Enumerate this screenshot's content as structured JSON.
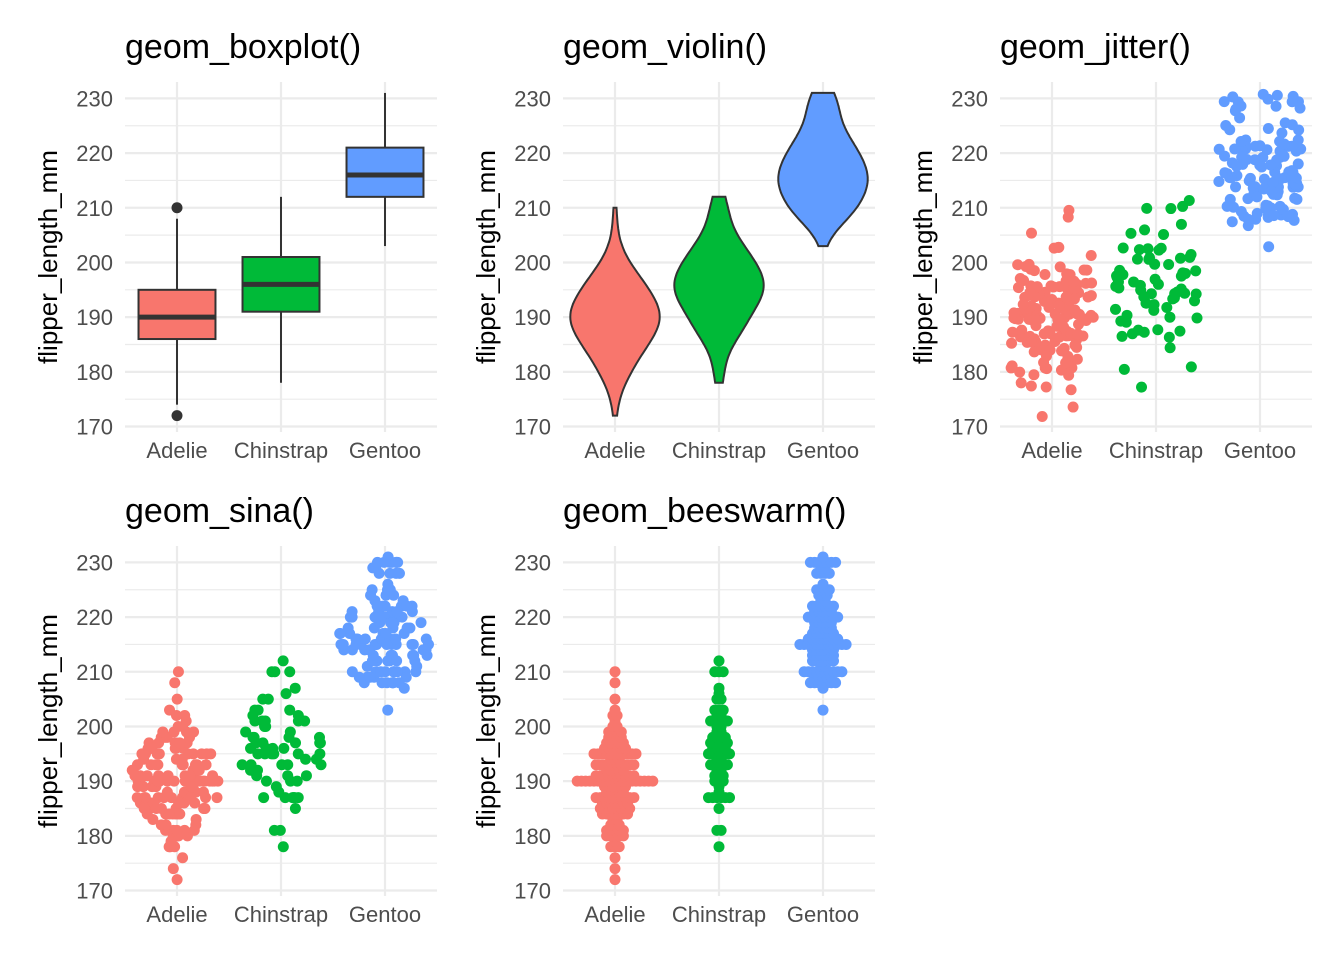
{
  "chart_data": [
    {
      "type": "box",
      "title": "geom_boxplot()",
      "ylabel": "flipper_length_mm",
      "xlabel": "",
      "categories": [
        "Adelie",
        "Chinstrap",
        "Gentoo"
      ],
      "yticks": [
        "170",
        "180",
        "190",
        "200",
        "210",
        "220",
        "230"
      ],
      "ylim": [
        169,
        233
      ],
      "boxes": [
        {
          "category": "Adelie",
          "min": 174,
          "q1": 186,
          "median": 190,
          "q3": 195,
          "max": 208,
          "outliers": [
            172,
            210
          ]
        },
        {
          "category": "Chinstrap",
          "min": 178,
          "q1": 191,
          "median": 196,
          "q3": 201,
          "max": 212,
          "outliers": []
        },
        {
          "category": "Gentoo",
          "min": 203,
          "q1": 212,
          "median": 216,
          "q3": 221,
          "max": 231,
          "outliers": []
        }
      ]
    },
    {
      "type": "violin",
      "title": "geom_violin()",
      "ylabel": "flipper_length_mm",
      "xlabel": "",
      "categories": [
        "Adelie",
        "Chinstrap",
        "Gentoo"
      ],
      "yticks": [
        "170",
        "180",
        "190",
        "200",
        "210",
        "220",
        "230"
      ],
      "ylim": [
        169,
        233
      ],
      "ranges": [
        {
          "category": "Adelie",
          "min": 172,
          "max": 210,
          "mode": 190
        },
        {
          "category": "Chinstrap",
          "min": 178,
          "max": 212,
          "mode": 196
        },
        {
          "category": "Gentoo",
          "min": 203,
          "max": 231,
          "mode": 215
        }
      ]
    },
    {
      "type": "scatter",
      "variant": "jitter",
      "title": "geom_jitter()",
      "ylabel": "flipper_length_mm",
      "xlabel": "",
      "categories": [
        "Adelie",
        "Chinstrap",
        "Gentoo"
      ],
      "yticks": [
        "170",
        "180",
        "190",
        "200",
        "210",
        "220",
        "230"
      ],
      "ylim": [
        169,
        233
      ]
    },
    {
      "type": "scatter",
      "variant": "sina",
      "title": "geom_sina()",
      "ylabel": "flipper_length_mm",
      "xlabel": "",
      "categories": [
        "Adelie",
        "Chinstrap",
        "Gentoo"
      ],
      "yticks": [
        "170",
        "180",
        "190",
        "200",
        "210",
        "220",
        "230"
      ],
      "ylim": [
        169,
        233
      ]
    },
    {
      "type": "scatter",
      "variant": "beeswarm",
      "title": "geom_beeswarm()",
      "ylabel": "flipper_length_mm",
      "xlabel": "",
      "categories": [
        "Adelie",
        "Chinstrap",
        "Gentoo"
      ],
      "yticks": [
        "170",
        "180",
        "190",
        "200",
        "210",
        "220",
        "230"
      ],
      "ylim": [
        169,
        233
      ]
    }
  ],
  "colors": {
    "Adelie": "#F8766D",
    "Chinstrap": "#00BA38",
    "Gentoo": "#619CFF",
    "grid": "#ebebeb",
    "outline": "#333333"
  },
  "samples": {
    "Adelie": [
      181,
      186,
      195,
      193,
      190,
      181,
      195,
      193,
      190,
      186,
      180,
      182,
      191,
      198,
      185,
      195,
      197,
      184,
      194,
      174,
      180,
      189,
      185,
      180,
      187,
      183,
      187,
      172,
      180,
      178,
      178,
      188,
      184,
      195,
      196,
      190,
      180,
      181,
      184,
      182,
      195,
      186,
      196,
      185,
      190,
      182,
      179,
      190,
      191,
      186,
      188,
      190,
      200,
      187,
      191,
      186,
      193,
      181,
      194,
      185,
      195,
      185,
      192,
      184,
      192,
      195,
      188,
      190,
      198,
      190,
      190,
      196,
      197,
      190,
      195,
      191,
      184,
      187,
      195,
      189,
      196,
      187,
      193,
      191,
      194,
      190,
      189,
      189,
      190,
      202,
      205,
      185,
      186,
      187,
      208,
      190,
      196,
      178,
      192,
      192,
      203,
      183,
      190,
      193,
      184,
      199,
      190,
      181,
      197,
      198,
      191,
      193,
      197,
      191,
      196,
      188,
      199,
      189,
      189,
      187,
      198,
      176,
      202,
      186,
      199,
      191,
      195,
      191,
      210,
      190,
      197,
      193,
      199,
      187,
      190,
      191,
      200,
      185,
      193,
      193,
      187,
      188,
      190,
      192,
      185,
      190,
      184,
      195,
      193,
      187,
      201
    ],
    "Chinstrap": [
      192,
      196,
      193,
      188,
      197,
      198,
      178,
      197,
      195,
      198,
      193,
      194,
      185,
      201,
      190,
      201,
      197,
      181,
      190,
      195,
      181,
      191,
      187,
      193,
      195,
      197,
      200,
      200,
      191,
      205,
      187,
      201,
      187,
      203,
      195,
      199,
      195,
      210,
      192,
      205,
      210,
      187,
      196,
      196,
      196,
      201,
      190,
      212,
      187,
      198,
      199,
      201,
      193,
      203,
      187,
      197,
      191,
      203,
      202,
      194,
      206,
      189,
      195,
      207,
      202,
      193,
      210,
      198
    ],
    "Gentoo": [
      211,
      230,
      210,
      218,
      215,
      210,
      211,
      219,
      209,
      215,
      214,
      216,
      214,
      213,
      210,
      217,
      210,
      221,
      209,
      222,
      218,
      215,
      213,
      215,
      215,
      215,
      216,
      215,
      210,
      220,
      222,
      209,
      207,
      230,
      220,
      220,
      213,
      219,
      208,
      208,
      208,
      225,
      210,
      216,
      222,
      217,
      210,
      225,
      213,
      215,
      210,
      220,
      210,
      225,
      217,
      220,
      208,
      220,
      208,
      224,
      208,
      221,
      214,
      231,
      219,
      230,
      214,
      229,
      220,
      223,
      216,
      221,
      221,
      217,
      216,
      230,
      209,
      220,
      215,
      223,
      212,
      221,
      212,
      224,
      212,
      228,
      218,
      218,
      212,
      230,
      218,
      228,
      212,
      224,
      214,
      226,
      216,
      222,
      203,
      225,
      219,
      228,
      215,
      228,
      216,
      215,
      210,
      219,
      208,
      209,
      216,
      229,
      213,
      230,
      217,
      230,
      217,
      222,
      214,
      215,
      222,
      212,
      213
    ]
  }
}
